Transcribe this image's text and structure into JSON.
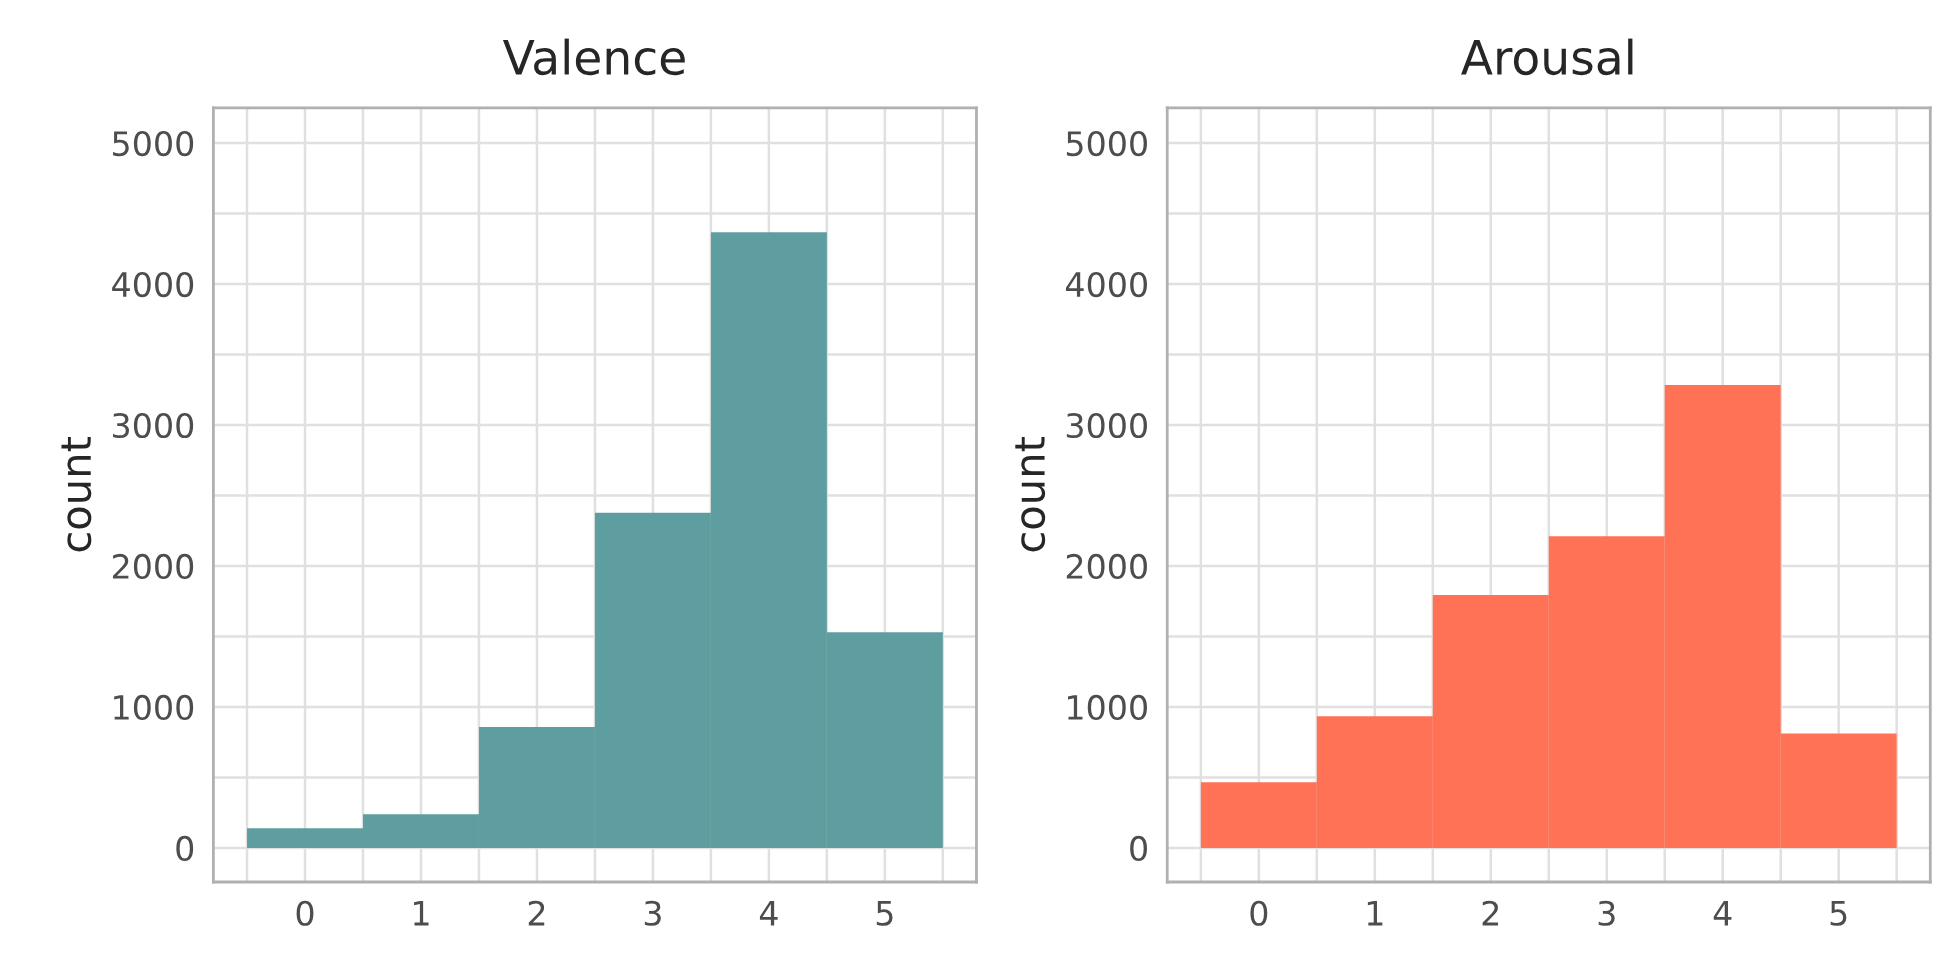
{
  "chart_data": [
    {
      "type": "histogram",
      "title": "Valence",
      "ylabel": "count",
      "color": "#5f9ea0",
      "bins": [
        -0.5,
        0.5,
        1.5,
        2.5,
        3.5,
        4.5,
        5.5
      ],
      "values": [
        139,
        238,
        857,
        2377,
        4368,
        1529
      ],
      "xlim": [
        -0.79,
        5.79
      ],
      "xticks": [
        0,
        1,
        2,
        3,
        4,
        5
      ],
      "ylim": [
        -242,
        5250
      ],
      "yticks": [
        0,
        1000,
        2000,
        3000,
        4000,
        5000
      ],
      "grid": true
    },
    {
      "type": "histogram",
      "title": "Arousal",
      "ylabel": "count",
      "color": "#ff7256",
      "bins": [
        -0.5,
        0.5,
        1.5,
        2.5,
        3.5,
        4.5,
        5.5
      ],
      "values": [
        466,
        933,
        1794,
        2211,
        3283,
        812
      ],
      "xlim": [
        -0.79,
        5.79
      ],
      "xticks": [
        0,
        1,
        2,
        3,
        4,
        5
      ],
      "ylim": [
        -242,
        5250
      ],
      "yticks": [
        0,
        1000,
        2000,
        3000,
        4000,
        5000
      ],
      "grid": true
    }
  ]
}
